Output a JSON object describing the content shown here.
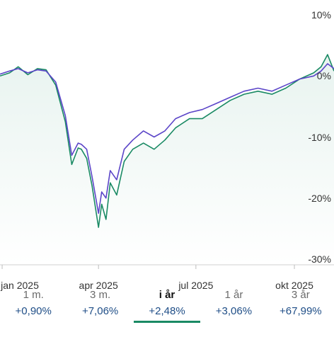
{
  "chart_data": {
    "type": "line",
    "x_ticks": [
      "jan 2025",
      "apr 2025",
      "jul 2025",
      "okt 2025"
    ],
    "y_ticks": [
      "10%",
      "0%",
      "-10%",
      "-20%",
      "-30%"
    ],
    "y_tick_values": [
      10,
      0,
      -10,
      -20,
      -30
    ],
    "ylim": [
      -30,
      10
    ],
    "xlim": [
      "2024-12-30",
      "2025-11-07"
    ],
    "x_tick_dates": [
      "2025-01-01",
      "2025-04-01",
      "2025-07-01",
      "2025-10-01"
    ],
    "grid": false,
    "colors": {
      "green": "#1a8a64",
      "purple": "#5b45c8",
      "fill": "#1a8a64"
    },
    "series": [
      {
        "color_key": "green",
        "x": [
          "2024-12-30",
          "2025-01-08",
          "2025-01-16",
          "2025-01-25",
          "2025-02-03",
          "2025-02-11",
          "2025-02-20",
          "2025-03-01",
          "2025-03-07",
          "2025-03-13",
          "2025-03-16",
          "2025-03-21",
          "2025-03-26",
          "2025-04-01",
          "2025-04-04",
          "2025-04-08",
          "2025-04-12",
          "2025-04-18",
          "2025-04-25",
          "2025-05-03",
          "2025-05-13",
          "2025-05-23",
          "2025-06-02",
          "2025-06-12",
          "2025-06-25",
          "2025-07-07",
          "2025-07-20",
          "2025-08-02",
          "2025-08-15",
          "2025-08-28",
          "2025-09-10",
          "2025-09-23",
          "2025-10-06",
          "2025-10-19",
          "2025-10-26",
          "2025-11-01",
          "2025-11-07"
        ],
        "values": [
          0.0,
          0.5,
          1.5,
          0.2,
          1.2,
          1.0,
          -1.5,
          -7.5,
          -14.5,
          -11.8,
          -12.0,
          -13.5,
          -18.0,
          -24.8,
          -21.0,
          -23.5,
          -17.5,
          -19.5,
          -14.0,
          -12.0,
          -11.0,
          -12.0,
          -10.5,
          -8.5,
          -7.0,
          -7.0,
          -5.5,
          -4.0,
          -3.0,
          -2.5,
          -3.0,
          -2.0,
          -0.5,
          0.5,
          1.5,
          3.5,
          0.8
        ]
      },
      {
        "color_key": "purple",
        "x": [
          "2024-12-30",
          "2025-01-08",
          "2025-01-16",
          "2025-01-25",
          "2025-02-03",
          "2025-02-11",
          "2025-02-20",
          "2025-03-01",
          "2025-03-07",
          "2025-03-13",
          "2025-03-16",
          "2025-03-21",
          "2025-03-26",
          "2025-04-01",
          "2025-04-04",
          "2025-04-08",
          "2025-04-12",
          "2025-04-18",
          "2025-04-25",
          "2025-05-03",
          "2025-05-13",
          "2025-05-23",
          "2025-06-02",
          "2025-06-12",
          "2025-06-25",
          "2025-07-07",
          "2025-07-20",
          "2025-08-02",
          "2025-08-15",
          "2025-08-28",
          "2025-09-10",
          "2025-09-23",
          "2025-10-06",
          "2025-10-19",
          "2025-10-26",
          "2025-11-01",
          "2025-11-07"
        ],
        "values": [
          0.3,
          0.8,
          1.2,
          0.5,
          1.0,
          0.8,
          -1.0,
          -6.5,
          -13.0,
          -11.0,
          -11.2,
          -12.0,
          -16.5,
          -22.5,
          -19.0,
          -20.0,
          -15.5,
          -17.0,
          -12.0,
          -10.5,
          -9.0,
          -10.0,
          -9.0,
          -7.0,
          -6.0,
          -5.5,
          -4.5,
          -3.5,
          -2.5,
          -2.0,
          -2.5,
          -1.5,
          -0.5,
          0.0,
          0.8,
          2.0,
          1.2
        ]
      }
    ]
  },
  "period_tabs": [
    {
      "label": "1 m.",
      "value": "+0,90%",
      "active": false
    },
    {
      "label": "3 m.",
      "value": "+7,06%",
      "active": false
    },
    {
      "label": "i år",
      "value": "+2,48%",
      "active": true
    },
    {
      "label": "1 år",
      "value": "+3,06%",
      "active": false
    },
    {
      "label": "3 år",
      "value": "+67,99%",
      "active": false
    }
  ]
}
